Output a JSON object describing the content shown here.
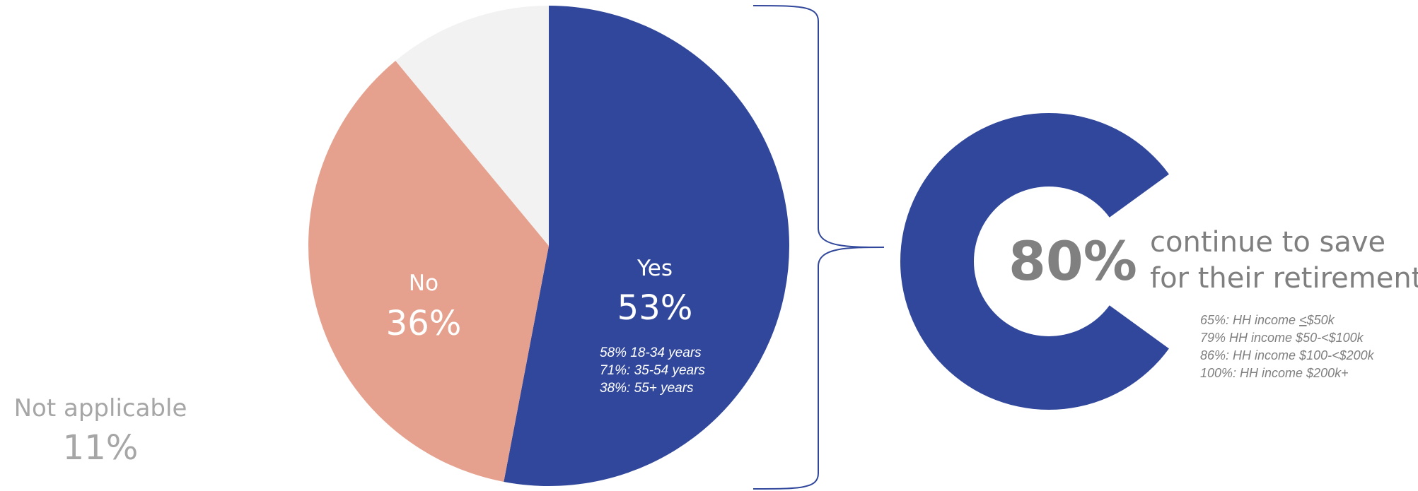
{
  "chart_data": [
    {
      "type": "pie",
      "slices": [
        {
          "label": "Yes",
          "value": 53,
          "value_label": "53%",
          "color": "#31479B"
        },
        {
          "label": "No",
          "value": 36,
          "value_label": "36%",
          "color": "#E6A18E"
        },
        {
          "label": "Not applicable",
          "value": 11,
          "value_label": "11%",
          "color": "#F2F2F2"
        }
      ],
      "yes_breakdown": [
        "58% 18-34 years",
        "71%: 35-54 years",
        "38%: 55+ years"
      ]
    },
    {
      "type": "pie",
      "slices": [
        {
          "label": "continue to save for their retirement",
          "value": 80,
          "color": "#31479B"
        },
        {
          "label": "",
          "value": 20,
          "color": "#FFFFFF"
        }
      ],
      "headline_value": "80%",
      "headline_text": [
        "continue to save",
        "for their retirement"
      ],
      "income_breakdown": [
        {
          "prefix": "65%: HH income ",
          "underlined": "<",
          "rest": "$50k"
        },
        {
          "prefix": "79% HH income $50-<$100k",
          "underlined": "",
          "rest": ""
        },
        {
          "prefix": "86%: HH income $100-<$200k",
          "underlined": "",
          "rest": ""
        },
        {
          "prefix": "100%: HH income $200k+",
          "underlined": "",
          "rest": ""
        }
      ]
    }
  ],
  "colors": {
    "brand_blue": "#31479B",
    "salmon": "#E6A18E",
    "light_gray": "#F2F2F2",
    "headline_gray": "#808080",
    "caption_gray": "#7F7F7F",
    "label_gray": "#A6A6A6"
  }
}
